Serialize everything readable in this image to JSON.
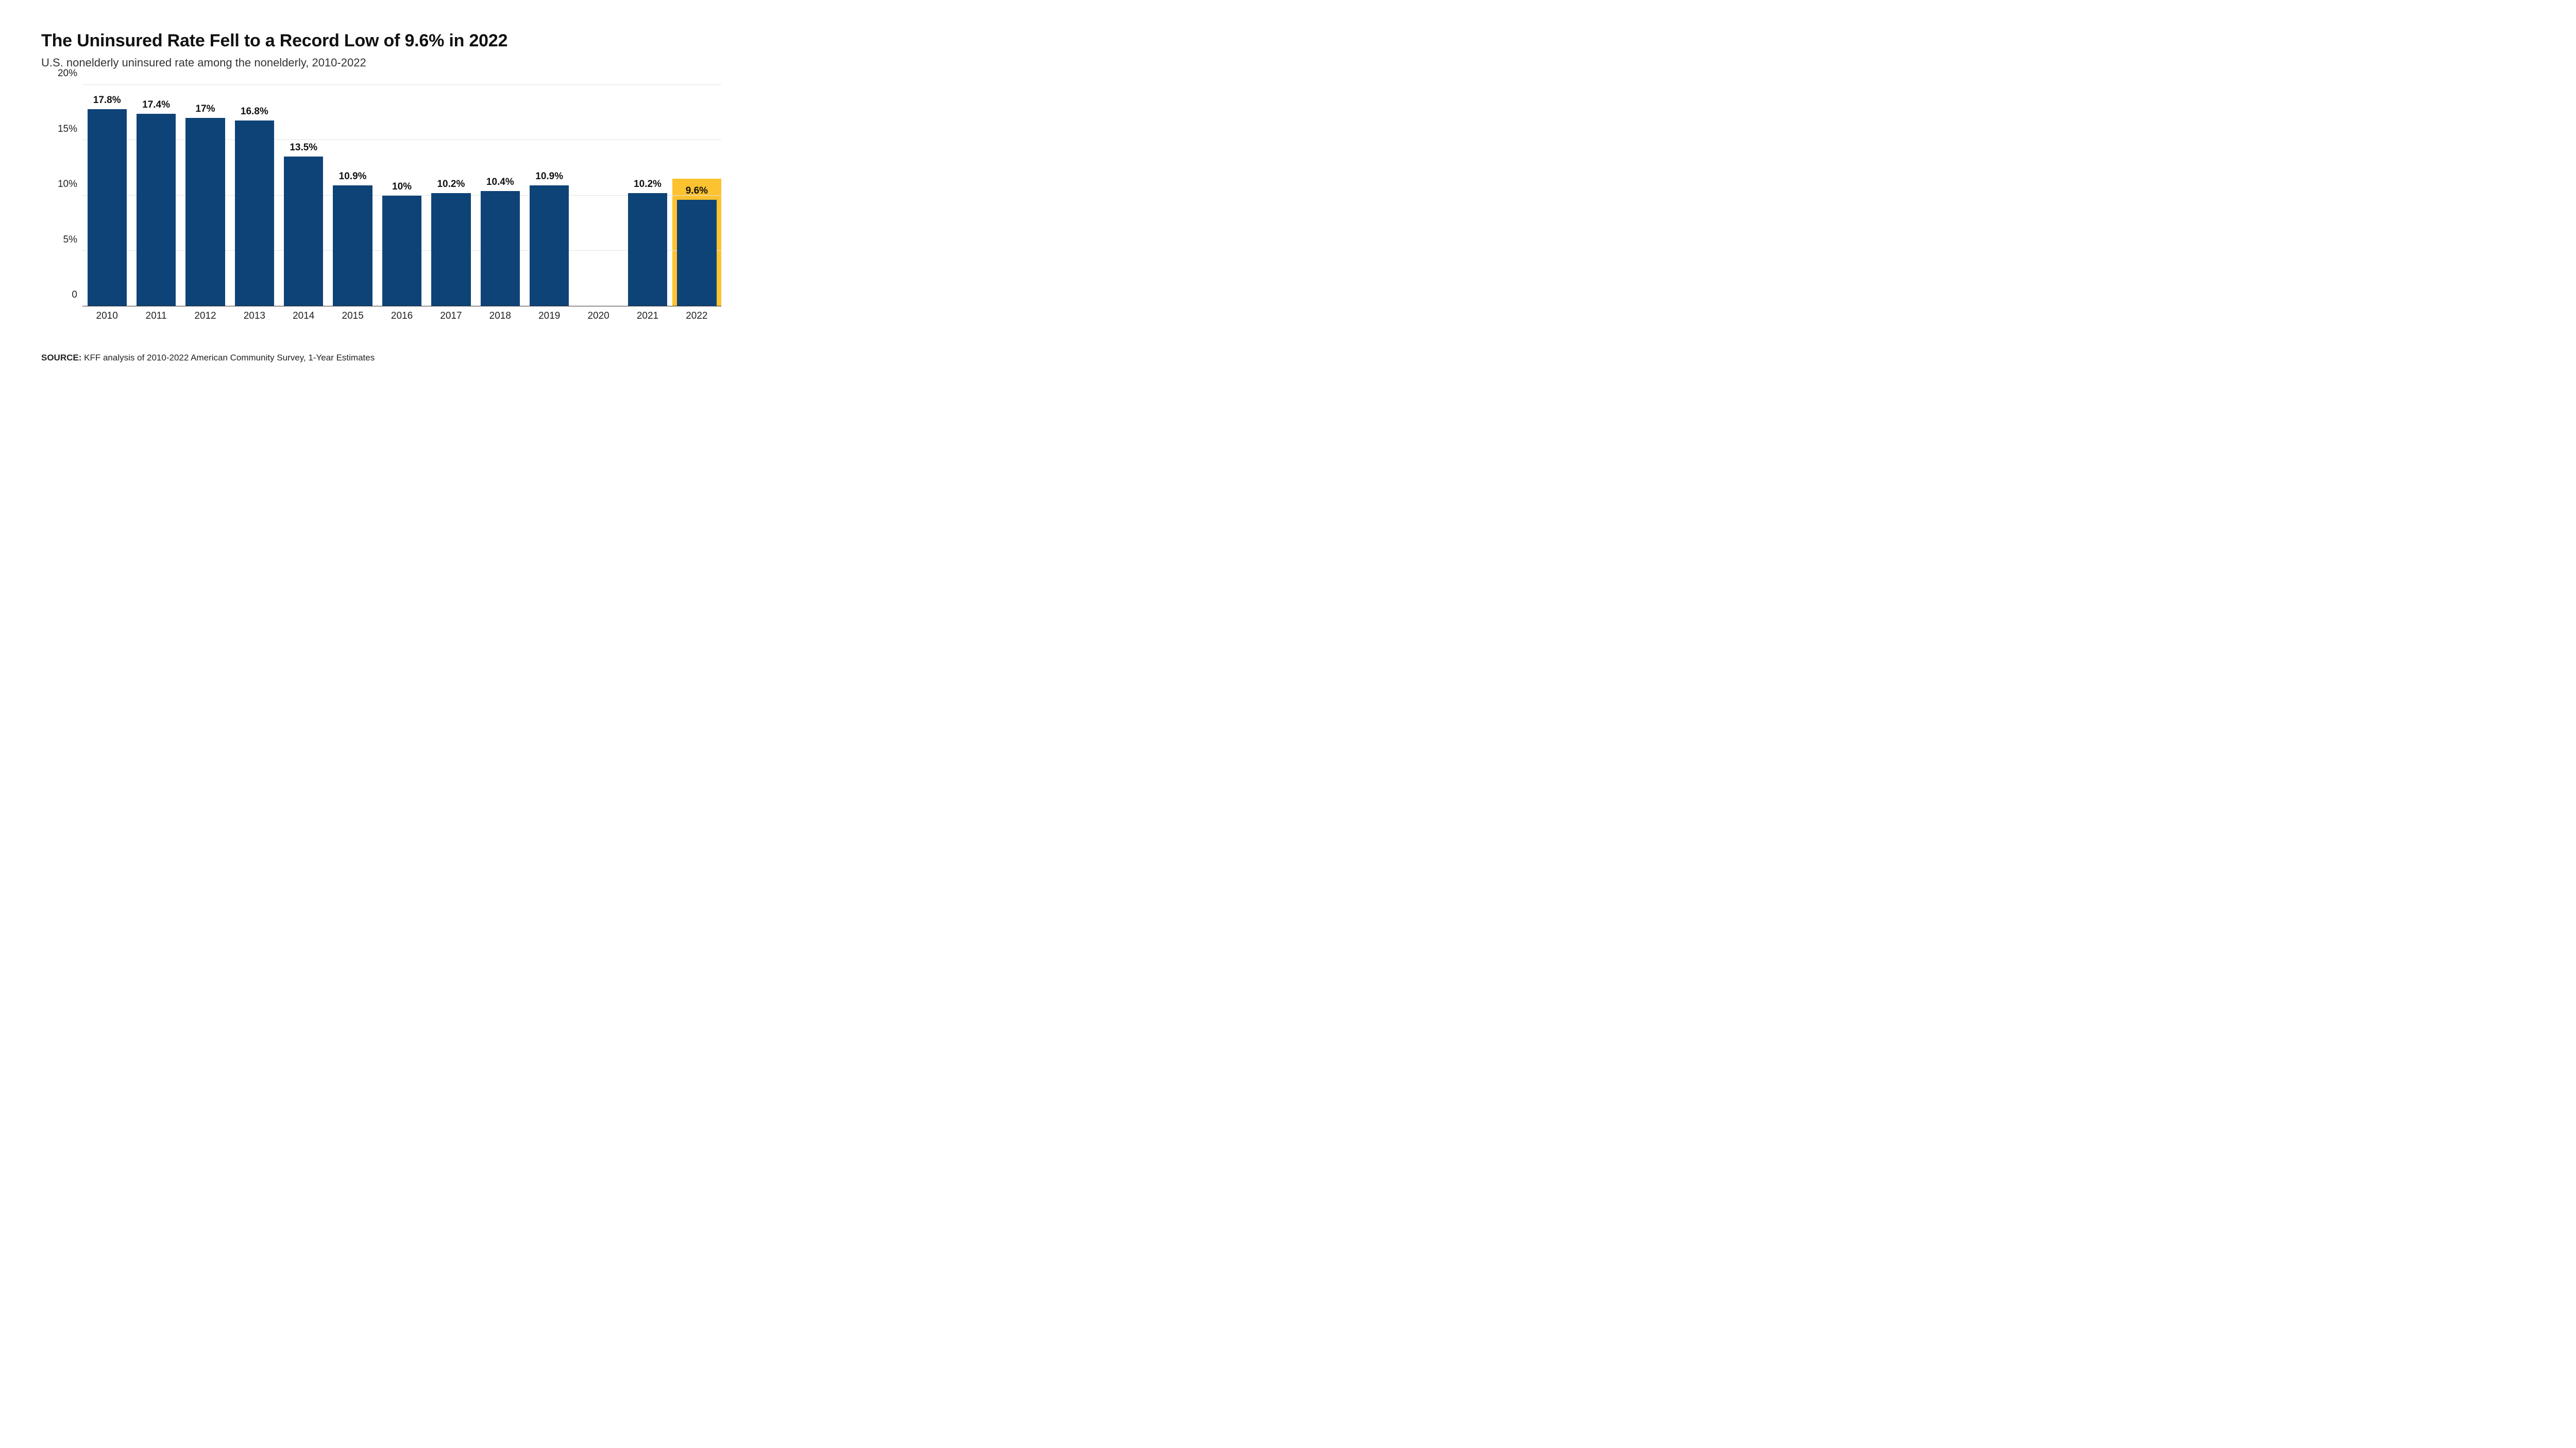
{
  "title": "The Uninsured Rate Fell to a Record Low of 9.6% in 2022",
  "subtitle": "U.S. nonelderly uninsured rate among the nonelderly, 2010-2022",
  "chart": {
    "type": "bar",
    "categories": [
      "2010",
      "2011",
      "2012",
      "2013",
      "2014",
      "2015",
      "2016",
      "2017",
      "2018",
      "2019",
      "2020",
      "2021",
      "2022"
    ],
    "values": [
      17.8,
      17.4,
      17,
      16.8,
      13.5,
      10.9,
      10,
      10.2,
      10.4,
      10.9,
      null,
      10.2,
      9.6
    ],
    "value_labels": [
      "17.8%",
      "17.4%",
      "17%",
      "16.8%",
      "13.5%",
      "10.9%",
      "10%",
      "10.2%",
      "10.4%",
      "10.9%",
      "",
      "10.2%",
      "9.6%"
    ],
    "highlight_index": 12,
    "highlight_extent": 11.5,
    "bar_color": "#0e4377",
    "highlight_color": "#fdc22f",
    "background_color": "#ffffff",
    "grid_color": "#e3e3e3",
    "axis_color": "#333333",
    "label_color": "#111111",
    "ylim": [
      0,
      20
    ],
    "ytick_step": 5,
    "yticks": [
      0,
      5,
      10,
      15,
      20
    ],
    "ytick_labels": [
      "0",
      "5%",
      "10%",
      "15%",
      "20%"
    ],
    "bar_width": 0.8,
    "title_fontsize": 34,
    "subtitle_fontsize": 22,
    "axis_label_fontsize": 19,
    "datalabel_fontsize": 19,
    "datalabel_fontweight": "700"
  },
  "source": {
    "label": "SOURCE:",
    "text": "KFF analysis of 2010-2022 American Community Survey, 1-Year Estimates"
  }
}
